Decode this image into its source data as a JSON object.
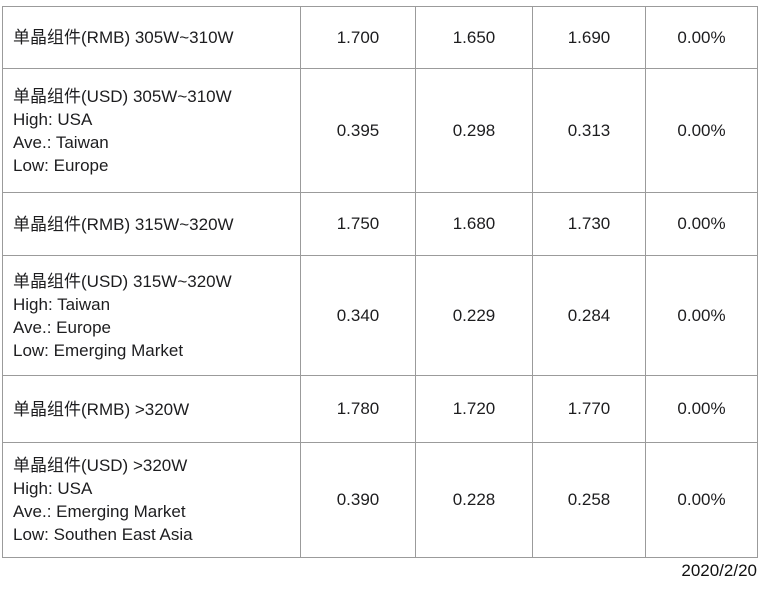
{
  "colors": {
    "border": "#9b9b9b",
    "text": "#1d1d1f",
    "background": "#ffffff"
  },
  "table": {
    "rows": [
      {
        "label_lines": [
          "单晶组件(RMB) 305W~310W"
        ],
        "values": [
          "1.700",
          "1.650",
          "1.690",
          "0.00%"
        ]
      },
      {
        "label_lines": [
          "单晶组件(USD) 305W~310W",
          "High: USA",
          "Ave.: Taiwan",
          "Low: Europe"
        ],
        "values": [
          "0.395",
          "0.298",
          "0.313",
          "0.00%"
        ]
      },
      {
        "label_lines": [
          "单晶组件(RMB) 315W~320W"
        ],
        "values": [
          "1.750",
          "1.680",
          "1.730",
          "0.00%"
        ]
      },
      {
        "label_lines": [
          "单晶组件(USD) 315W~320W",
          "High: Taiwan",
          "Ave.: Europe",
          "Low: Emerging Market"
        ],
        "values": [
          "0.340",
          "0.229",
          "0.284",
          "0.00%"
        ]
      },
      {
        "label_lines": [
          "单晶组件(RMB) >320W"
        ],
        "values": [
          "1.780",
          "1.720",
          "1.770",
          "0.00%"
        ]
      },
      {
        "label_lines": [
          "单晶组件(USD) >320W",
          "High: USA",
          "Ave.: Emerging Market",
          "Low: Southen East Asia"
        ],
        "values": [
          "0.390",
          "0.228",
          "0.258",
          "0.00%"
        ]
      }
    ]
  },
  "footer": {
    "date": "2020/2/20"
  }
}
